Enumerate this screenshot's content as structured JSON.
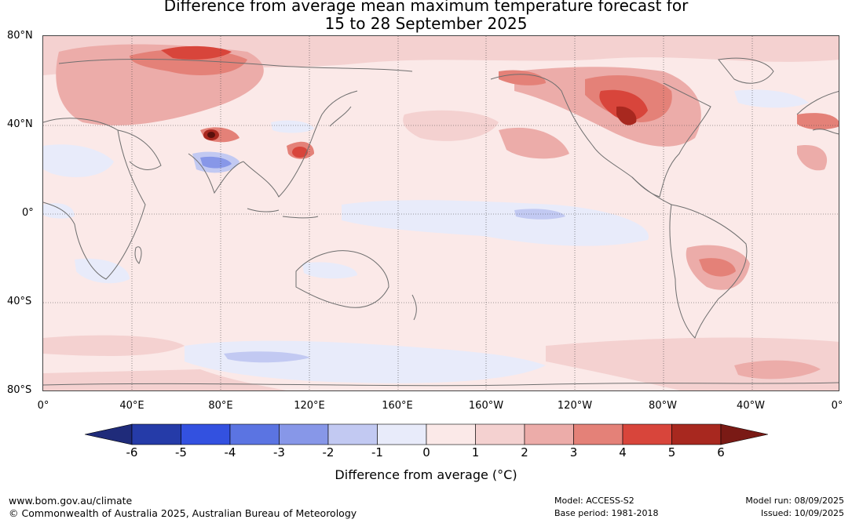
{
  "title": {
    "line1": "Difference from average mean maximum temperature forecast for",
    "line2": "15 to 28 September 2025"
  },
  "map": {
    "lat_labels": [
      "80°N",
      "40°N",
      "0°",
      "40°S",
      "80°S"
    ],
    "lon_labels": [
      "0°",
      "40°E",
      "80°E",
      "120°E",
      "160°E",
      "160°W",
      "120°W",
      "80°W",
      "40°W",
      "0°"
    ]
  },
  "colorbar": {
    "ticks": [
      "-6",
      "-5",
      "-4",
      "-3",
      "-2",
      "-1",
      "0",
      "1",
      "2",
      "3",
      "4",
      "5",
      "6"
    ],
    "colors": [
      "#253ba8",
      "#3351e0",
      "#5b74e2",
      "#8797e8",
      "#c2c9f2",
      "#e8ebfa",
      "#fbe9e8",
      "#f4d1d0",
      "#ecaca9",
      "#e48178",
      "#d8453b",
      "#a8281f"
    ],
    "under_color": "#1f2b7a",
    "over_color": "#7a1a15",
    "label": "Difference from average (°C)"
  },
  "footer": {
    "left_line1": "www.bom.gov.au/climate",
    "left_line2": "© Commonwealth of Australia 2025, Australian Bureau of Meteorology",
    "model": "Model: ACCESS-S2",
    "base_period": "Base period: 1981-2018",
    "model_run": "Model run: 08/09/2025",
    "issued": "Issued: 10/09/2025"
  }
}
